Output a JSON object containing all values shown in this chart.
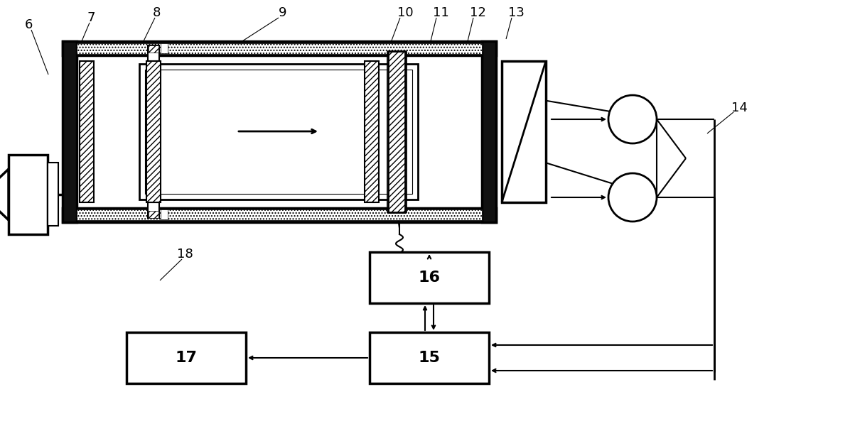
{
  "bg_color": "#ffffff",
  "lc": "#000000",
  "fig_w": 12.03,
  "fig_h": 6.0,
  "dpi": 100,
  "label_fs": 13
}
